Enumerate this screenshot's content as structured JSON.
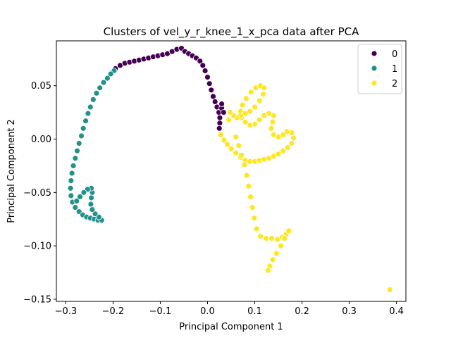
{
  "chart_data": {
    "type": "scatter",
    "title": "Clusters of vel_y_r_knee_1_x_pca data after PCA",
    "xlabel": "Principal Component 1",
    "ylabel": "Principal Component 2",
    "xlim": [
      -0.32,
      0.42
    ],
    "ylim": [
      -0.152,
      0.092
    ],
    "xticks": [
      -0.3,
      -0.2,
      -0.1,
      0.0,
      0.1,
      0.2,
      0.3,
      0.4
    ],
    "xtick_labels": [
      "−0.3",
      "−0.2",
      "−0.1",
      "0.0",
      "0.1",
      "0.2",
      "0.3",
      "0.4"
    ],
    "yticks": [
      -0.15,
      -0.1,
      -0.05,
      0.0,
      0.05
    ],
    "ytick_labels": [
      "−0.15",
      "−0.10",
      "−0.05",
      "0.00",
      "0.05"
    ],
    "grid": false,
    "legend_position": "top-right",
    "series": [
      {
        "name": "0",
        "color": "#440154",
        "points": [
          [
            -0.195,
            0.066
          ],
          [
            -0.185,
            0.069
          ],
          [
            -0.175,
            0.071
          ],
          [
            -0.165,
            0.072
          ],
          [
            -0.155,
            0.073
          ],
          [
            -0.145,
            0.074
          ],
          [
            -0.135,
            0.075
          ],
          [
            -0.125,
            0.076
          ],
          [
            -0.115,
            0.077
          ],
          [
            -0.105,
            0.078
          ],
          [
            -0.095,
            0.079
          ],
          [
            -0.085,
            0.08
          ],
          [
            -0.075,
            0.082
          ],
          [
            -0.065,
            0.084
          ],
          [
            -0.055,
            0.085
          ],
          [
            -0.048,
            0.082
          ],
          [
            -0.04,
            0.08
          ],
          [
            -0.032,
            0.078
          ],
          [
            -0.024,
            0.076
          ],
          [
            -0.016,
            0.073
          ],
          [
            -0.01,
            0.069
          ],
          [
            -0.005,
            0.064
          ],
          [
            0.0,
            0.058
          ],
          [
            0.004,
            0.052
          ],
          [
            0.008,
            0.046
          ],
          [
            0.012,
            0.04
          ],
          [
            0.016,
            0.035
          ],
          [
            0.02,
            0.03
          ],
          [
            0.024,
            0.025
          ],
          [
            0.026,
            0.02
          ],
          [
            0.026,
            0.015
          ],
          [
            0.025,
            0.01
          ],
          [
            0.03,
            0.029
          ],
          [
            0.034,
            0.025
          ],
          [
            0.03,
            0.033
          ]
        ]
      },
      {
        "name": "1",
        "color": "#21918c",
        "points": [
          [
            -0.198,
            0.064
          ],
          [
            -0.205,
            0.061
          ],
          [
            -0.212,
            0.057
          ],
          [
            -0.22,
            0.053
          ],
          [
            -0.228,
            0.048
          ],
          [
            -0.235,
            0.043
          ],
          [
            -0.242,
            0.037
          ],
          [
            -0.248,
            0.03
          ],
          [
            -0.253,
            0.024
          ],
          [
            -0.258,
            0.017
          ],
          [
            -0.263,
            0.01
          ],
          [
            -0.267,
            0.003
          ],
          [
            -0.272,
            -0.004
          ],
          [
            -0.276,
            -0.011
          ],
          [
            -0.28,
            -0.018
          ],
          [
            -0.284,
            -0.025
          ],
          [
            -0.287,
            -0.032
          ],
          [
            -0.289,
            -0.039
          ],
          [
            -0.29,
            -0.046
          ],
          [
            -0.289,
            -0.053
          ],
          [
            -0.286,
            -0.059
          ],
          [
            -0.28,
            -0.064
          ],
          [
            -0.272,
            -0.068
          ],
          [
            -0.264,
            -0.071
          ],
          [
            -0.256,
            -0.073
          ],
          [
            -0.248,
            -0.074
          ],
          [
            -0.24,
            -0.075
          ],
          [
            -0.232,
            -0.076
          ],
          [
            -0.224,
            -0.076
          ],
          [
            -0.23,
            -0.073
          ],
          [
            -0.238,
            -0.07
          ],
          [
            -0.244,
            -0.066
          ],
          [
            -0.247,
            -0.061
          ],
          [
            -0.246,
            -0.055
          ],
          [
            -0.244,
            -0.05
          ],
          [
            -0.246,
            -0.046
          ],
          [
            -0.254,
            -0.047
          ],
          [
            -0.262,
            -0.05
          ],
          [
            -0.27,
            -0.054
          ],
          [
            -0.277,
            -0.058
          ]
        ]
      },
      {
        "name": "2",
        "color": "#fde725",
        "points": [
          [
            0.028,
            0.004
          ],
          [
            0.035,
            -0.001
          ],
          [
            0.042,
            -0.005
          ],
          [
            0.05,
            -0.009
          ],
          [
            0.06,
            -0.013
          ],
          [
            0.07,
            -0.017
          ],
          [
            0.08,
            -0.02
          ],
          [
            0.09,
            -0.021
          ],
          [
            0.1,
            -0.021
          ],
          [
            0.11,
            -0.02
          ],
          [
            0.12,
            -0.019
          ],
          [
            0.13,
            -0.018
          ],
          [
            0.14,
            -0.016
          ],
          [
            0.15,
            -0.014
          ],
          [
            0.16,
            -0.011
          ],
          [
            0.17,
            -0.008
          ],
          [
            0.178,
            -0.004
          ],
          [
            0.182,
            0.001
          ],
          [
            0.178,
            0.006
          ],
          [
            0.168,
            0.007
          ],
          [
            0.16,
            0.004
          ],
          [
            0.15,
            0.002
          ],
          [
            0.14,
            0.004
          ],
          [
            0.135,
            0.01
          ],
          [
            0.138,
            0.016
          ],
          [
            0.14,
            0.022
          ],
          [
            0.13,
            0.024
          ],
          [
            0.12,
            0.022
          ],
          [
            0.11,
            0.018
          ],
          [
            0.1,
            0.014
          ],
          [
            0.09,
            0.013
          ],
          [
            0.08,
            0.016
          ],
          [
            0.072,
            0.02
          ],
          [
            0.07,
            0.026
          ],
          [
            0.074,
            0.032
          ],
          [
            0.082,
            0.038
          ],
          [
            0.092,
            0.044
          ],
          [
            0.102,
            0.048
          ],
          [
            0.112,
            0.05
          ],
          [
            0.12,
            0.048
          ],
          [
            0.118,
            0.042
          ],
          [
            0.11,
            0.036
          ],
          [
            0.1,
            0.03
          ],
          [
            0.09,
            0.026
          ],
          [
            0.08,
            0.024
          ],
          [
            0.07,
            0.022
          ],
          [
            0.062,
            0.02
          ],
          [
            0.055,
            0.022
          ],
          [
            0.048,
            0.025
          ],
          [
            0.045,
            0.018
          ],
          [
            0.06,
            0.002
          ],
          [
            0.066,
            -0.006
          ],
          [
            0.072,
            -0.015
          ],
          [
            0.078,
            -0.024
          ],
          [
            0.083,
            -0.034
          ],
          [
            0.087,
            -0.044
          ],
          [
            0.091,
            -0.054
          ],
          [
            0.095,
            -0.064
          ],
          [
            0.099,
            -0.074
          ],
          [
            0.104,
            -0.084
          ],
          [
            0.112,
            -0.091
          ],
          [
            0.124,
            -0.093
          ],
          [
            0.136,
            -0.093
          ],
          [
            0.148,
            -0.094
          ],
          [
            0.158,
            -0.092
          ],
          [
            0.166,
            -0.089
          ],
          [
            0.172,
            -0.086
          ],
          [
            0.163,
            -0.093
          ],
          [
            0.155,
            -0.1
          ],
          [
            0.146,
            -0.107
          ],
          [
            0.138,
            -0.113
          ],
          [
            0.132,
            -0.119
          ],
          [
            0.128,
            -0.123
          ],
          [
            0.386,
            -0.141
          ]
        ]
      }
    ]
  }
}
